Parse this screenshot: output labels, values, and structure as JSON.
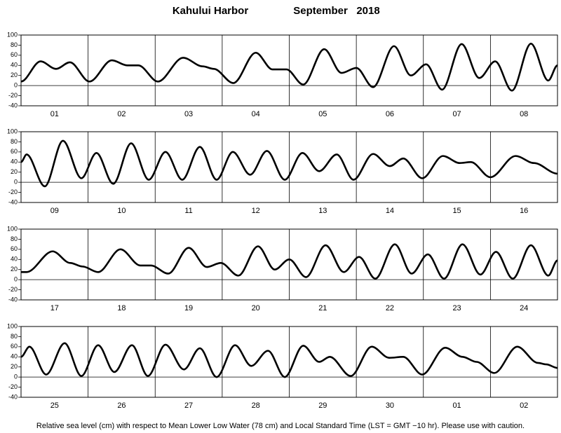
{
  "header": {
    "station": "Kahului Harbor",
    "period": "September   2018"
  },
  "footnote": "Relative sea level (cm) with respect to Mean Lower Low Water (78 cm) and Local Standard Time (LST = GMT −10 hr). Please use with caution.",
  "chart_data": [
    {
      "type": "line",
      "color": "#000000",
      "categories": [
        "01",
        "02",
        "03",
        "04",
        "05",
        "06",
        "07",
        "08"
      ],
      "xlim": [
        0,
        192
      ],
      "ylim": [
        -40,
        100
      ],
      "yticks": [
        -40,
        -20,
        0,
        20,
        40,
        60,
        80,
        100
      ],
      "zero_line": true,
      "x": [
        0,
        7,
        12.5,
        17.5,
        24.5,
        32.5,
        38,
        42,
        49,
        58,
        65,
        69,
        76,
        84,
        90,
        95,
        101,
        108.5,
        114.7,
        120,
        126,
        133.5,
        139.5,
        145,
        150.7,
        157.7,
        164,
        169.7,
        175.7,
        182.5,
        188.7,
        192
      ],
      "values": [
        8,
        48,
        33,
        46,
        8,
        50,
        40,
        40,
        8,
        55,
        38,
        33,
        5,
        65,
        32,
        32,
        2,
        72,
        25,
        35,
        -3,
        78,
        20,
        42,
        -8,
        82,
        15,
        48,
        -10,
        83,
        10,
        40
      ]
    },
    {
      "type": "line",
      "color": "#000000",
      "categories": [
        "09",
        "10",
        "11",
        "12",
        "13",
        "14",
        "15",
        "16"
      ],
      "xlim": [
        0,
        192
      ],
      "ylim": [
        -40,
        100
      ],
      "yticks": [
        -40,
        -20,
        0,
        20,
        40,
        60,
        80,
        100
      ],
      "zero_line": true,
      "x": [
        0,
        2,
        8.5,
        15,
        21.6,
        27,
        33,
        39.4,
        45.7,
        51.7,
        57.7,
        64,
        70,
        75.8,
        82,
        88,
        94.4,
        100.7,
        106.7,
        113,
        119,
        126,
        132,
        136.8,
        143.6,
        151,
        157,
        161,
        168,
        177,
        183.6,
        192
      ],
      "values": [
        40,
        55,
        -8,
        82,
        8,
        58,
        -3,
        77,
        5,
        60,
        5,
        70,
        5,
        60,
        15,
        62,
        5,
        58,
        22,
        55,
        5,
        56,
        32,
        47,
        8,
        52,
        38,
        40,
        10,
        52,
        38,
        17
      ]
    },
    {
      "type": "line",
      "color": "#000000",
      "categories": [
        "17",
        "18",
        "19",
        "20",
        "21",
        "22",
        "23",
        "24"
      ],
      "xlim": [
        0,
        192
      ],
      "ylim": [
        -40,
        100
      ],
      "yticks": [
        -40,
        -20,
        0,
        20,
        40,
        60,
        80,
        100
      ],
      "zero_line": true,
      "x": [
        0,
        2,
        11.3,
        17.6,
        22,
        27.6,
        35.6,
        42.7,
        46.5,
        52.7,
        60,
        66.5,
        71.5,
        77.8,
        84.8,
        90.8,
        96,
        102,
        109,
        115.5,
        121,
        126.8,
        133.8,
        139.8,
        145.6,
        151.4,
        158,
        164.4,
        170,
        176,
        182.5,
        188.7,
        192
      ],
      "values": [
        15,
        15,
        56,
        33,
        26,
        15,
        60,
        28,
        28,
        12,
        63,
        25,
        33,
        8,
        66,
        20,
        40,
        5,
        68,
        15,
        45,
        2,
        70,
        12,
        50,
        2,
        70,
        10,
        55,
        2,
        68,
        8,
        38
      ]
    },
    {
      "type": "line",
      "color": "#000000",
      "categories": [
        "25",
        "26",
        "27",
        "28",
        "29",
        "30",
        "01",
        "02"
      ],
      "xlim": [
        0,
        192
      ],
      "ylim": [
        -40,
        100
      ],
      "yticks": [
        -40,
        -20,
        0,
        20,
        40,
        60,
        80,
        100
      ],
      "zero_line": true,
      "x": [
        0,
        3,
        9,
        15.6,
        21.6,
        27.6,
        33.4,
        39.7,
        45.4,
        51.7,
        58.3,
        64,
        70,
        76.6,
        82.4,
        88.4,
        94.4,
        101,
        106.7,
        110.5,
        118,
        125.5,
        131.8,
        136.8,
        143.6,
        151.8,
        158,
        163,
        169.4,
        177.6,
        185,
        188,
        192
      ],
      "values": [
        40,
        60,
        5,
        67,
        2,
        63,
        10,
        63,
        2,
        64,
        15,
        57,
        0,
        63,
        22,
        52,
        0,
        62,
        30,
        40,
        2,
        60,
        38,
        40,
        5,
        58,
        40,
        30,
        8,
        60,
        28,
        25,
        18
      ]
    }
  ]
}
